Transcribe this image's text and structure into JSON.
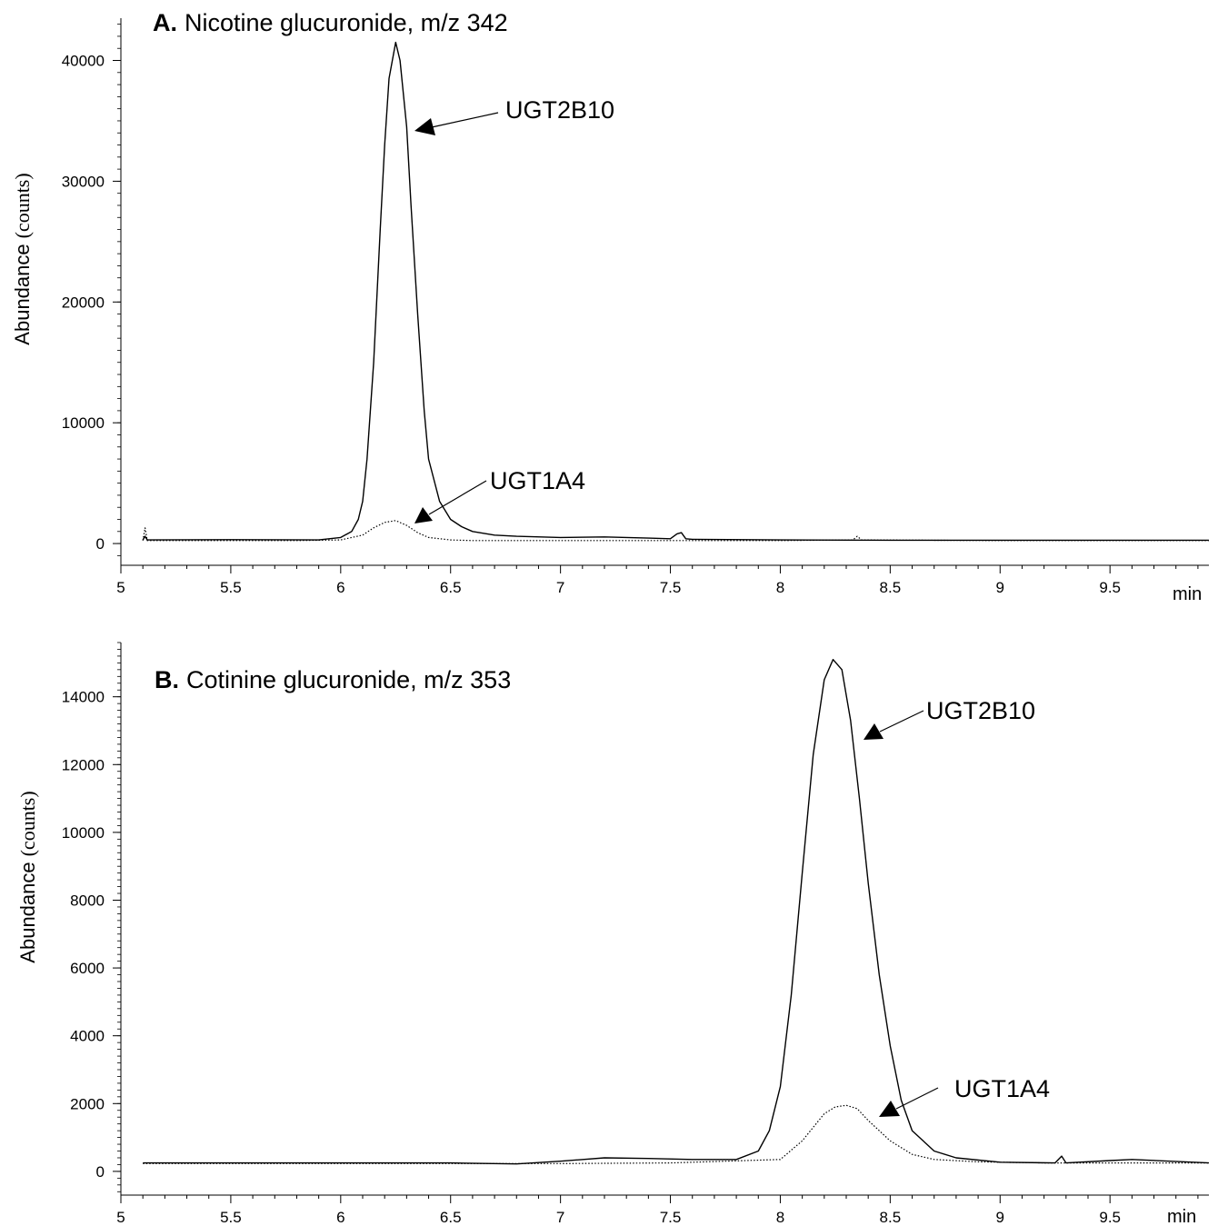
{
  "chart_data": [
    {
      "type": "line",
      "title_bold": "A.",
      "title": "Nicotine glucuronide, m/z 342",
      "ylabel_main": "Abundance",
      "ylabel_unit": "(counts)",
      "x_unit": "min",
      "xlim": [
        5,
        9.95
      ],
      "ylim": [
        -1800,
        43500
      ],
      "x_ticks": [
        5,
        5.5,
        6,
        6.5,
        7,
        7.5,
        8,
        8.5,
        9,
        9.5
      ],
      "x_tick_labels": [
        "5",
        "5.5",
        "6",
        "6.5",
        "7",
        "7.5",
        "8",
        "8.5",
        "9",
        "9.5"
      ],
      "y_ticks": [
        0,
        10000,
        20000,
        30000,
        40000
      ],
      "y_tick_labels": [
        "0",
        "10000",
        "20000",
        "30000",
        "40000"
      ],
      "grid": false,
      "series": [
        {
          "name": "UGT2B10",
          "style": "solid",
          "x": [
            5.1,
            5.11,
            5.12,
            5.5,
            5.9,
            6.0,
            6.05,
            6.08,
            6.1,
            6.12,
            6.15,
            6.18,
            6.2,
            6.22,
            6.25,
            6.27,
            6.3,
            6.32,
            6.35,
            6.38,
            6.4,
            6.45,
            6.5,
            6.55,
            6.6,
            6.7,
            6.8,
            7.0,
            7.2,
            7.4,
            7.5,
            7.53,
            7.55,
            7.57,
            7.6,
            8.0,
            8.5,
            9.0,
            9.5,
            9.95
          ],
          "y": [
            300,
            600,
            300,
            320,
            300,
            500,
            1000,
            2000,
            3500,
            7000,
            15000,
            26000,
            33000,
            38500,
            41500,
            40000,
            34500,
            28000,
            19000,
            11000,
            7000,
            3500,
            2000,
            1400,
            1000,
            700,
            600,
            500,
            550,
            450,
            400,
            800,
            900,
            400,
            350,
            300,
            280,
            280,
            280,
            280
          ]
        },
        {
          "name": "UGT1A4",
          "style": "dotted",
          "x": [
            5.1,
            5.11,
            5.12,
            5.8,
            6.0,
            6.1,
            6.15,
            6.2,
            6.25,
            6.3,
            6.35,
            6.4,
            6.5,
            6.6,
            7.0,
            7.5,
            8.0,
            8.33,
            8.35,
            8.37,
            9.0,
            9.95
          ],
          "y": [
            250,
            1300,
            250,
            250,
            300,
            700,
            1300,
            1750,
            1900,
            1500,
            900,
            500,
            300,
            250,
            250,
            250,
            250,
            300,
            600,
            300,
            250,
            250
          ]
        }
      ],
      "annotations": [
        {
          "text": "UGT2B10",
          "series": "UGT2B10"
        },
        {
          "text": "UGT1A4",
          "series": "UGT1A4"
        }
      ]
    },
    {
      "type": "line",
      "title_bold": "B.",
      "title": "Cotinine glucuronide, m/z 353",
      "ylabel_main": "Abundance",
      "ylabel_unit": "(counts)",
      "x_unit": "min",
      "xlim": [
        5,
        9.95
      ],
      "ylim": [
        -700,
        15600
      ],
      "x_ticks": [
        5,
        5.5,
        6,
        6.5,
        7,
        7.5,
        8,
        8.5,
        9,
        9.5
      ],
      "x_tick_labels": [
        "5",
        "5.5",
        "6",
        "6.5",
        "7",
        "7.5",
        "8",
        "8.5",
        "9",
        "9.5"
      ],
      "y_ticks": [
        0,
        2000,
        4000,
        6000,
        8000,
        10000,
        12000,
        14000
      ],
      "y_tick_labels": [
        "0",
        "2000",
        "4000",
        "6000",
        "8000",
        "10000",
        "12000",
        "14000"
      ],
      "grid": false,
      "series": [
        {
          "name": "UGT2B10",
          "style": "solid",
          "x": [
            5.1,
            5.5,
            6.0,
            6.5,
            6.8,
            7.0,
            7.2,
            7.4,
            7.6,
            7.8,
            7.9,
            7.95,
            8.0,
            8.05,
            8.1,
            8.15,
            8.2,
            8.24,
            8.28,
            8.32,
            8.36,
            8.4,
            8.45,
            8.5,
            8.55,
            8.6,
            8.7,
            8.8,
            9.0,
            9.25,
            9.28,
            9.3,
            9.5,
            9.6,
            9.95
          ],
          "y": [
            250,
            250,
            250,
            250,
            220,
            300,
            400,
            380,
            350,
            350,
            600,
            1200,
            2500,
            5200,
            8800,
            12300,
            14500,
            15100,
            14800,
            13300,
            11000,
            8500,
            5800,
            3700,
            2100,
            1200,
            600,
            400,
            270,
            250,
            450,
            250,
            320,
            350,
            250
          ]
        },
        {
          "name": "UGT1A4",
          "style": "dotted",
          "x": [
            5.1,
            6.0,
            7.0,
            7.5,
            8.0,
            8.1,
            8.2,
            8.25,
            8.3,
            8.35,
            8.4,
            8.5,
            8.6,
            8.7,
            8.9,
            9.2,
            9.95
          ],
          "y": [
            230,
            230,
            230,
            250,
            350,
            900,
            1700,
            1900,
            1950,
            1850,
            1500,
            900,
            500,
            350,
            280,
            250,
            250
          ]
        }
      ],
      "annotations": [
        {
          "text": "UGT2B10",
          "series": "UGT2B10"
        },
        {
          "text": "UGT1A4",
          "series": "UGT1A4"
        }
      ]
    }
  ]
}
